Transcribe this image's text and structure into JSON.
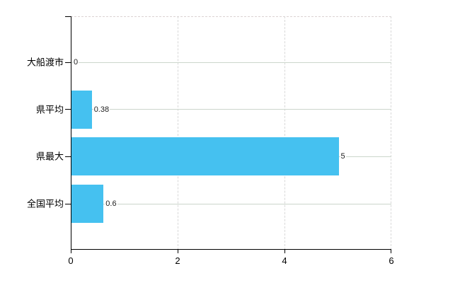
{
  "chart_data": {
    "type": "bar",
    "orientation": "horizontal",
    "title": "",
    "xlabel": "",
    "ylabel": "",
    "categories": [
      "大船渡市",
      "県平均",
      "県最大",
      "全国平均"
    ],
    "values": [
      0,
      0.38,
      5,
      0.6
    ],
    "value_labels": [
      "0",
      "0.38",
      "5",
      "0.6"
    ],
    "xlim": [
      0,
      6
    ],
    "x_ticks": [
      0,
      2,
      4,
      6
    ],
    "x_tick_labels": [
      "0",
      "2",
      "4",
      "6"
    ],
    "grid": true,
    "legend": false
  },
  "style": {
    "bar_color": "#45C1F0",
    "h_grid_color": "#ccd6cc",
    "v_grid_color": "#d8d8d8",
    "top_border_color": "#dcd3d3",
    "right_border_color": "#d8d8d8",
    "axis_color": "#000000",
    "text_color": "#000000",
    "value_text_color": "#222222",
    "background": "#ffffff"
  }
}
